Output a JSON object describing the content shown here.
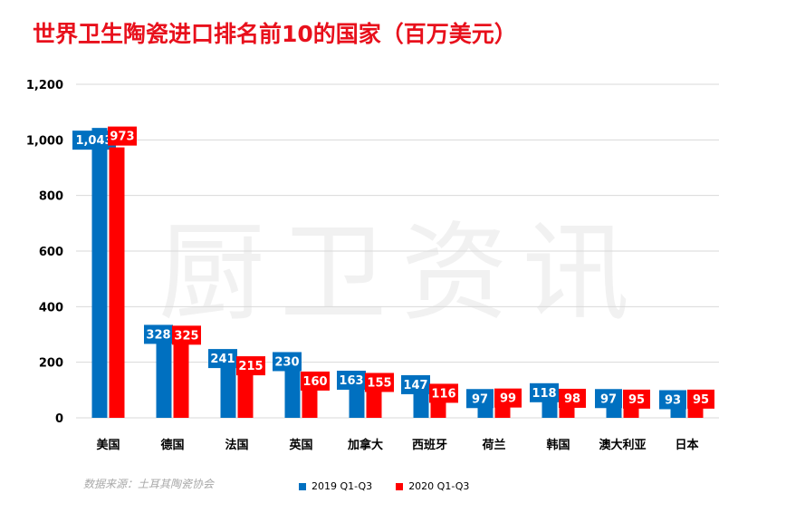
{
  "chart_data": {
    "type": "bar",
    "title": "世界卫生陶瓷进口排名前10的国家（百万美元）",
    "categories": [
      "美国",
      "德国",
      "法国",
      "英国",
      "加拿大",
      "西班牙",
      "荷兰",
      "韩国",
      "澳大利亚",
      "日本"
    ],
    "series": [
      {
        "name": "2019  Q1-Q3",
        "color": "#0070c0",
        "values": [
          1043,
          328,
          241,
          230,
          163,
          147,
          97,
          118,
          97,
          93
        ],
        "labels": [
          "1,043",
          "328",
          "241",
          "230",
          "163",
          "147",
          "97",
          "118",
          "97",
          "93"
        ]
      },
      {
        "name": "2020 Q1-Q3",
        "color": "#ff0000",
        "values": [
          973,
          325,
          215,
          160,
          155,
          116,
          99,
          98,
          95,
          95
        ],
        "labels": [
          "973",
          "325",
          "215",
          "160",
          "155",
          "116",
          "99",
          "98",
          "95",
          "95"
        ]
      }
    ],
    "ylim": [
      0,
      1200
    ],
    "yticks": [
      0,
      200,
      400,
      600,
      800,
      1000,
      1200
    ],
    "ytick_labels": [
      "0",
      "200",
      "400",
      "600",
      "800",
      "1,000",
      "1,200"
    ],
    "grid": true,
    "legend_position": "bottom",
    "source_note": "数据来源：土耳其陶瓷协会"
  },
  "watermark": "厨卫资讯",
  "colors": {
    "title": "#e8101c",
    "gridline": "#d9d9d9"
  }
}
